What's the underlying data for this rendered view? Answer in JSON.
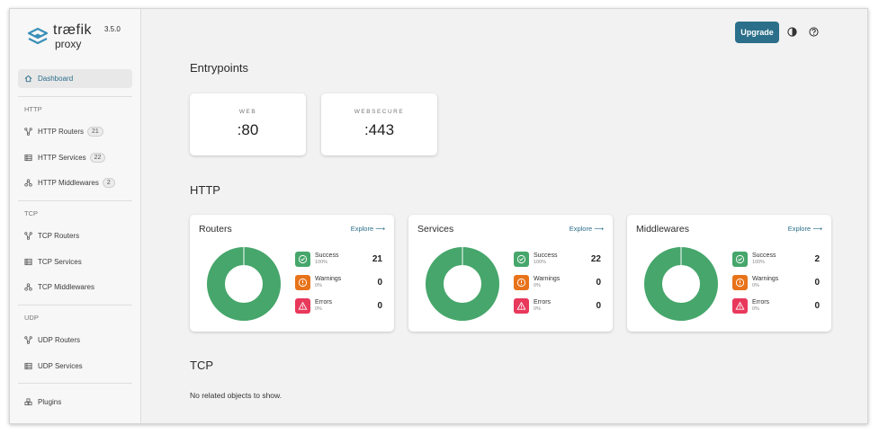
{
  "brand": {
    "name": "træfik",
    "sub": "proxy",
    "version": "3.5.0"
  },
  "colors": {
    "accent": "#2b6f8a",
    "success": "#46a66b",
    "warning": "#e8731a",
    "error": "#e8385b"
  },
  "sidebar": {
    "dashboard": "Dashboard",
    "http": {
      "label": "HTTP",
      "items": [
        {
          "label": "HTTP Routers",
          "count": "21"
        },
        {
          "label": "HTTP Services",
          "count": "22"
        },
        {
          "label": "HTTP Middlewares",
          "count": "2"
        }
      ]
    },
    "tcp": {
      "label": "TCP",
      "items": [
        {
          "label": "TCP Routers"
        },
        {
          "label": "TCP Services"
        },
        {
          "label": "TCP Middlewares"
        }
      ]
    },
    "udp": {
      "label": "UDP",
      "items": [
        {
          "label": "UDP Routers"
        },
        {
          "label": "UDP Services"
        }
      ]
    },
    "plugins": "Plugins"
  },
  "header": {
    "upgrade": "Upgrade",
    "theme_icon": "contrast-icon",
    "help_icon": "help-icon"
  },
  "entrypoints": {
    "title": "Entrypoints",
    "items": [
      {
        "name": "WEB",
        "port": ":80"
      },
      {
        "name": "WEBSECURE",
        "port": ":443"
      }
    ]
  },
  "http": {
    "title": "HTTP",
    "cards": [
      {
        "title": "Routers",
        "explore": "Explore",
        "success": {
          "label": "Success",
          "pct": "100%",
          "count": "21"
        },
        "warnings": {
          "label": "Warnings",
          "pct": "0%",
          "count": "0"
        },
        "errors": {
          "label": "Errors",
          "pct": "0%",
          "count": "0"
        }
      },
      {
        "title": "Services",
        "explore": "Explore",
        "success": {
          "label": "Success",
          "pct": "100%",
          "count": "22"
        },
        "warnings": {
          "label": "Warnings",
          "pct": "0%",
          "count": "0"
        },
        "errors": {
          "label": "Errors",
          "pct": "0%",
          "count": "0"
        }
      },
      {
        "title": "Middlewares",
        "explore": "Explore",
        "success": {
          "label": "Success",
          "pct": "100%",
          "count": "2"
        },
        "warnings": {
          "label": "Warnings",
          "pct": "0%",
          "count": "0"
        },
        "errors": {
          "label": "Errors",
          "pct": "0%",
          "count": "0"
        }
      }
    ]
  },
  "tcp": {
    "title": "TCP",
    "empty": "No related objects to show."
  }
}
